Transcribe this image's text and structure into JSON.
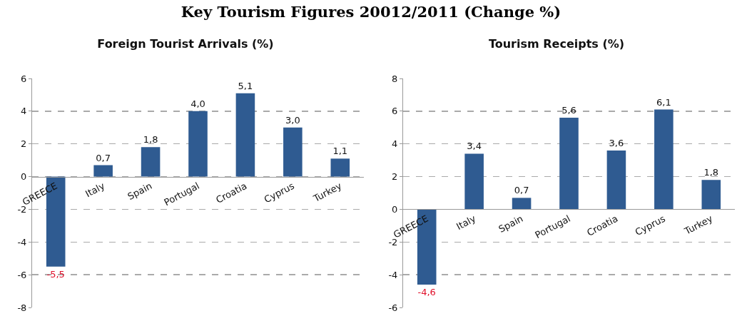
{
  "chart_data": [
    {
      "type": "other",
      "title": "Key Tourism Figures 20012/2011 (Change %)"
    },
    {
      "type": "bar",
      "title": "Foreign Tourist Arrivals (%)",
      "categories": [
        "GREECE",
        "Italy",
        "Spain",
        "Portugal",
        "Croatia",
        "Cyprus",
        "Turkey"
      ],
      "values": [
        -5.5,
        0.7,
        1.8,
        4.0,
        5.1,
        3.0,
        1.1
      ],
      "value_labels": [
        "-5,5",
        "0,7",
        "1,8",
        "4,0",
        "5,1",
        "3,0",
        "1,1"
      ],
      "color": "#2f5b91",
      "ylim": [
        -8,
        6
      ],
      "yticks": [
        -8,
        -6,
        -4,
        -2,
        0,
        2,
        4,
        6
      ],
      "grid": "y"
    },
    {
      "type": "bar",
      "title": "Tourism Receipts (%)",
      "categories": [
        "GREECE",
        "Italy",
        "Spain",
        "Portugal",
        "Croatia",
        "Cyprus",
        "Turkey"
      ],
      "values": [
        -4.6,
        3.4,
        0.7,
        5.6,
        3.6,
        6.1,
        1.8
      ],
      "value_labels": [
        "-4,6",
        "3,4",
        "0,7",
        "5,6",
        "3,6",
        "6,1",
        "1,8"
      ],
      "color": "#2f5b91",
      "ylim": [
        -6,
        8
      ],
      "yticks": [
        -6,
        -4,
        -2,
        0,
        2,
        4,
        6,
        8
      ],
      "grid": "y"
    }
  ]
}
